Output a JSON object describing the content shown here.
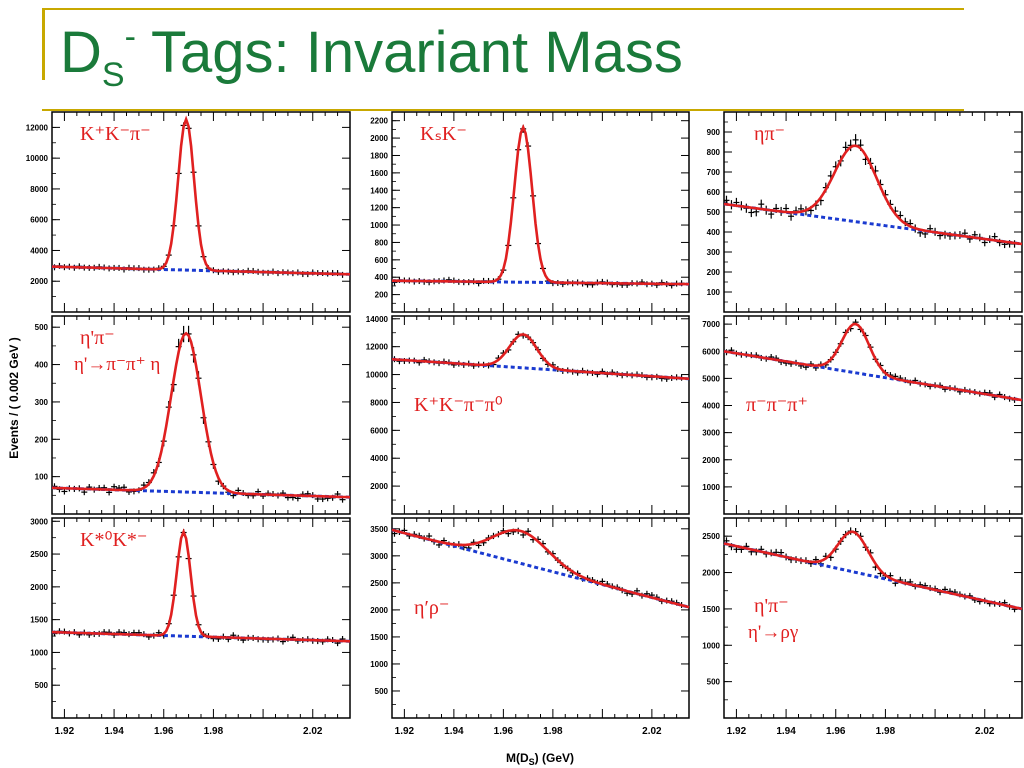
{
  "title": {
    "base": "D",
    "sub": "S",
    "sup": "-",
    "rest": " Tags: Invariant Mass"
  },
  "axes": {
    "ylabel": "Events / ( 0.002 GeV )",
    "xlabel": "M(D",
    "xlabel_sub": "S",
    "xlabel_tail": ") (GeV)",
    "xticks": [
      "1.92",
      "1.94",
      "1.96",
      "1.98",
      "2.02"
    ],
    "xrange": [
      1.915,
      2.035
    ]
  },
  "colors": {
    "data": "#000000",
    "fit": "#e02020",
    "background": "#1a3ad0",
    "label": "#e02020",
    "title": "#1a7a3a",
    "rule": "#c8a800"
  },
  "chart_data": [
    {
      "type": "scatter",
      "label": "K⁺K⁻π⁻",
      "ylim": [
        0,
        13000
      ],
      "yticks": [
        "2000",
        "4000",
        "6000",
        "8000",
        "10000",
        "12000"
      ],
      "peak_x": 1.969,
      "width": 0.0032,
      "amp": 9800,
      "bg": [
        2950,
        2450
      ],
      "label_pos": "top-left"
    },
    {
      "type": "scatter",
      "label": "KₛK⁻",
      "ylim": [
        0,
        2300
      ],
      "yticks": [
        "200",
        "400",
        "600",
        "800",
        "1000",
        "1200",
        "1400",
        "1600",
        "1800",
        "2000",
        "2200"
      ],
      "peak_x": 1.968,
      "width": 0.0036,
      "amp": 1780,
      "bg": [
        360,
        320
      ],
      "label_pos": "top-left"
    },
    {
      "type": "scatter",
      "label": "ηπ⁻",
      "ylim": [
        0,
        1000
      ],
      "yticks": [
        "100",
        "200",
        "300",
        "400",
        "500",
        "600",
        "700",
        "800",
        "900"
      ],
      "peak_x": 1.968,
      "width": 0.0085,
      "amp": 380,
      "bg": [
        540,
        340
      ],
      "label_pos": "top-left"
    },
    {
      "type": "scatter",
      "label": "η'π⁻",
      "label2": "η'→π⁻π⁺ η",
      "ylim": [
        0,
        530
      ],
      "yticks": [
        "100",
        "200",
        "300",
        "400",
        "500"
      ],
      "peak_x": 1.969,
      "width": 0.006,
      "amp": 425,
      "bg": [
        70,
        45
      ],
      "label_pos": "top-left"
    },
    {
      "type": "scatter",
      "label": "K⁺K⁻π⁻π⁰",
      "ylim": [
        0,
        14200
      ],
      "yticks": [
        "2000",
        "4000",
        "6000",
        "8000",
        "10000",
        "12000",
        "14000"
      ],
      "peak_x": 1.968,
      "width": 0.0055,
      "amp": 2400,
      "bg": [
        11100,
        9700
      ],
      "label_pos": "middle-left"
    },
    {
      "type": "scatter",
      "label": "π⁻π⁻π⁺",
      "ylim": [
        0,
        7300
      ],
      "yticks": [
        "1000",
        "2000",
        "3000",
        "4000",
        "5000",
        "6000",
        "7000"
      ],
      "peak_x": 1.968,
      "width": 0.0055,
      "amp": 1800,
      "bg": [
        6000,
        4200
      ],
      "label_pos": "middle-left"
    },
    {
      "type": "scatter",
      "label": "K*⁰K*⁻",
      "ylim": [
        0,
        3050
      ],
      "yticks": [
        "500",
        "1000",
        "1500",
        "2000",
        "2500",
        "3000"
      ],
      "peak_x": 1.968,
      "width": 0.0028,
      "amp": 1590,
      "bg": [
        1310,
        1170
      ],
      "label_pos": "top-left"
    },
    {
      "type": "scatter",
      "label": "η′ρ⁻",
      "ylim": [
        0,
        3700
      ],
      "yticks": [
        "500",
        "1000",
        "1500",
        "2000",
        "2500",
        "3000",
        "3500"
      ],
      "peak_x": 1.967,
      "width": 0.011,
      "amp": 600,
      "bg": [
        3480,
        2050
      ],
      "label_pos": "middle-left"
    },
    {
      "type": "scatter",
      "label": "η'π⁻",
      "label2": "η'→ργ",
      "ylim": [
        0,
        2750
      ],
      "yticks": [
        "500",
        "1000",
        "1500",
        "2000",
        "2500"
      ],
      "peak_x": 1.967,
      "width": 0.006,
      "amp": 550,
      "bg": [
        2400,
        1500
      ],
      "label_pos": "bottom-left"
    }
  ]
}
